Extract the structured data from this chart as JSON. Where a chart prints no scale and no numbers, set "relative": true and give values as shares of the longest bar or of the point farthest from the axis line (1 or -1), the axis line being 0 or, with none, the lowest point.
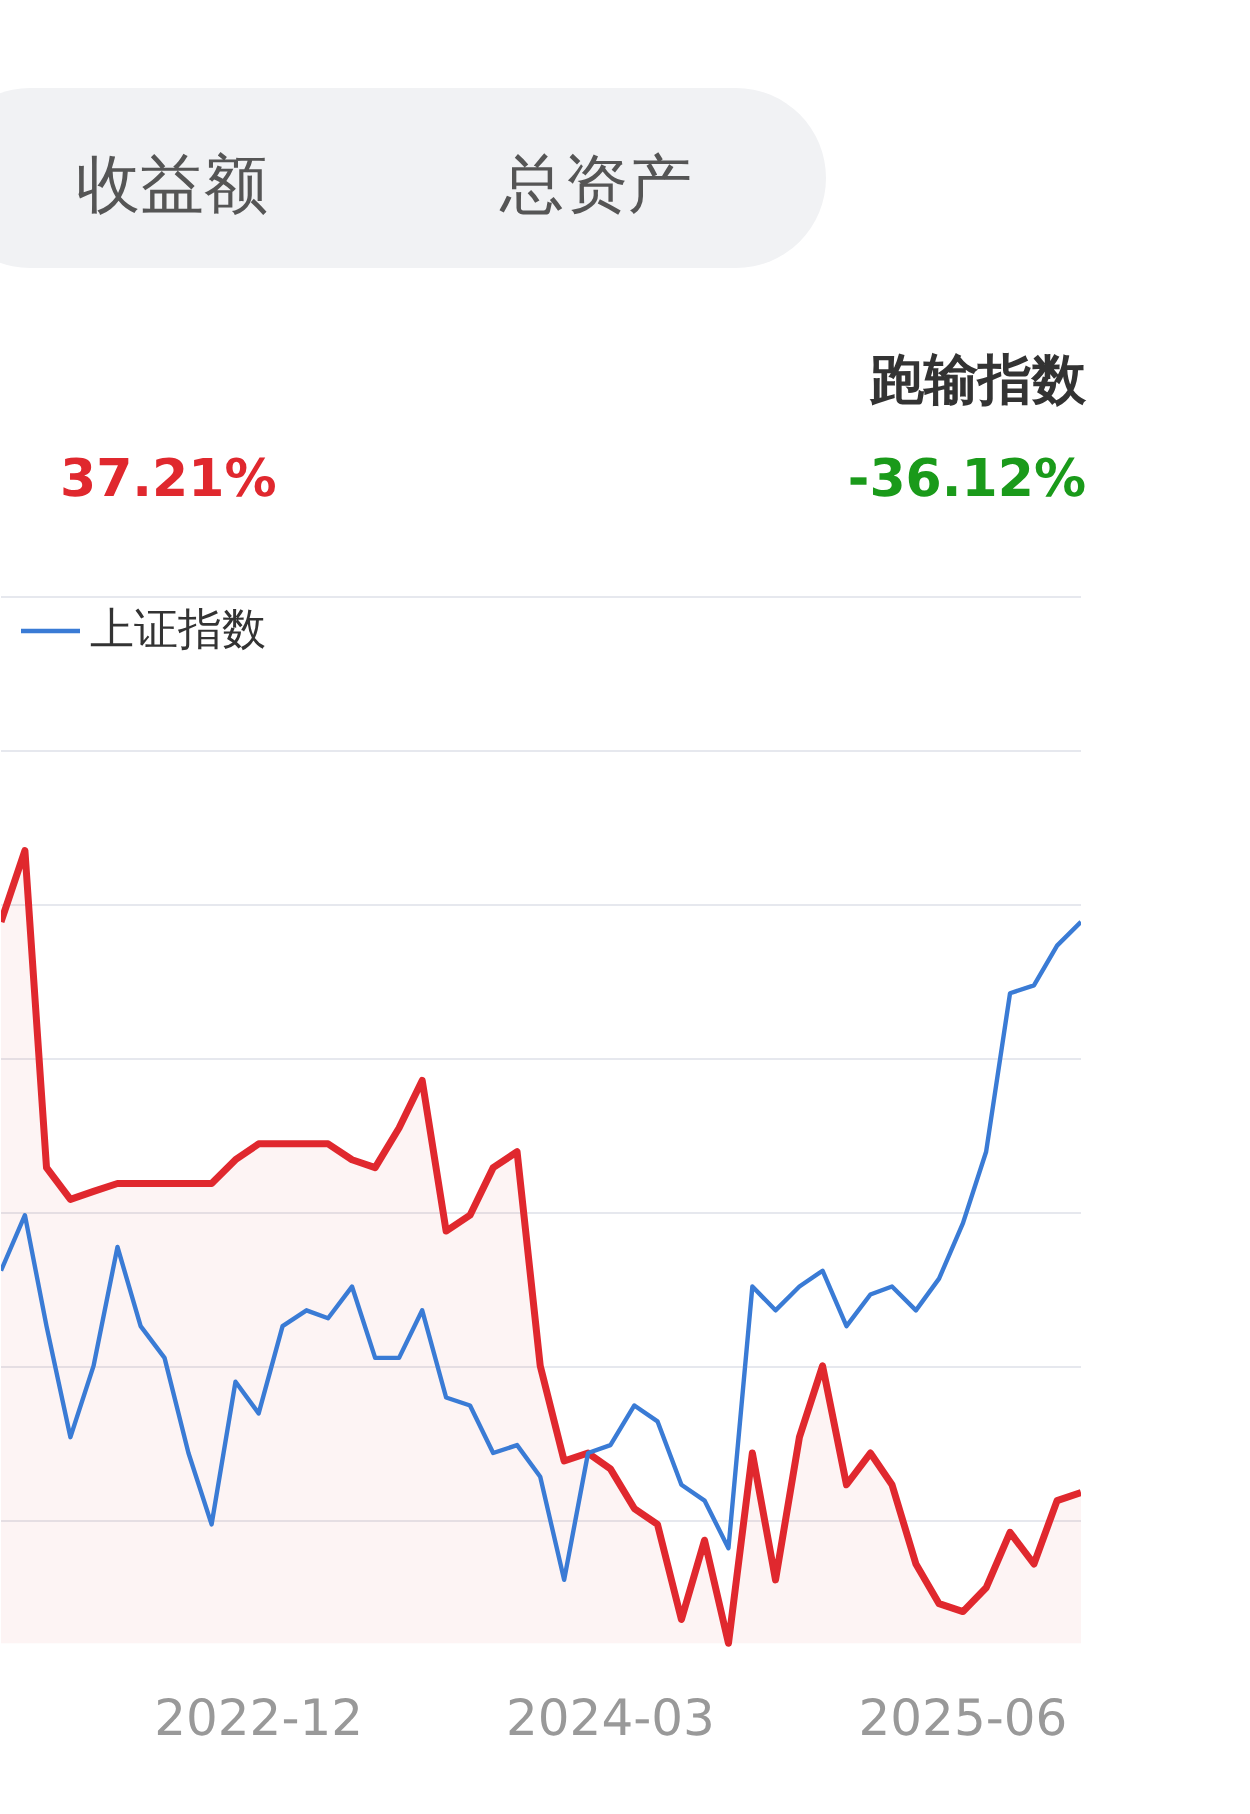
{
  "chart_data": {
    "type": "line",
    "relative": true,
    "x": [
      "2022-01",
      "2022-02",
      "2022-03",
      "2022-04",
      "2022-05",
      "2022-06",
      "2022-07",
      "2022-08",
      "2022-09",
      "2022-10",
      "2022-11",
      "2022-12",
      "2023-01",
      "2023-02",
      "2023-03",
      "2023-04",
      "2023-05",
      "2023-06",
      "2023-07",
      "2023-08",
      "2023-09",
      "2023-10",
      "2023-11",
      "2023-12",
      "2024-01",
      "2024-02",
      "2024-03",
      "2024-04",
      "2024-05",
      "2024-06",
      "2024-07",
      "2024-08",
      "2024-09",
      "2024-10",
      "2024-11",
      "2024-12",
      "2025-01",
      "2025-02",
      "2025-03",
      "2025-04",
      "2025-05",
      "2025-06",
      "2025-07",
      "2025-08",
      "2025-09",
      "2025-10",
      "2025-11"
    ],
    "xlim": [
      "2022-01",
      "2025-11"
    ],
    "xticks": [
      {
        "value": "2022-12",
        "label": "2022-12"
      },
      {
        "value": "2024-03",
        "label": "2024-03"
      },
      {
        "value": "2025-06",
        "label": "2025-06"
      }
    ],
    "series": [
      {
        "type": "area",
        "color": "#e0282e",
        "values": [
          0.91,
          1.0,
          0.6,
          0.56,
          0.57,
          0.58,
          0.58,
          0.58,
          0.58,
          0.58,
          0.61,
          0.63,
          0.63,
          0.63,
          0.63,
          0.61,
          0.6,
          0.65,
          0.71,
          0.52,
          0.54,
          0.6,
          0.62,
          0.35,
          0.23,
          0.24,
          0.22,
          0.17,
          0.15,
          0.03,
          0.13,
          0,
          0.24,
          0.08,
          0.26,
          0.35,
          0.2,
          0.24,
          0.2,
          0.1,
          0.05,
          0.04,
          0.07,
          0.14,
          0.1,
          0.18,
          0.19
        ]
      },
      {
        "name": "上证指数",
        "color": "#3a7bd5",
        "values": [
          0.47,
          0.54,
          0.4,
          0.26,
          0.35,
          0.5,
          0.4,
          0.36,
          0.24,
          0.15,
          0.33,
          0.29,
          0.4,
          0.42,
          0.41,
          0.45,
          0.36,
          0.36,
          0.42,
          0.31,
          0.3,
          0.24,
          0.25,
          0.21,
          0.08,
          0.24,
          0.25,
          0.3,
          0.28,
          0.2,
          0.18,
          0.12,
          0.45,
          0.42,
          0.45,
          0.47,
          0.4,
          0.44,
          0.45,
          0.42,
          0.46,
          0.53,
          0.62,
          0.82,
          0.83,
          0.88,
          0.91
        ]
      }
    ],
    "annotations": [
      "收益额",
      "总资产",
      "37.21%",
      "跑输指数",
      "-36.12%"
    ],
    "grid": "y",
    "legend": "top left",
    "line_style": "solid"
  }
}
